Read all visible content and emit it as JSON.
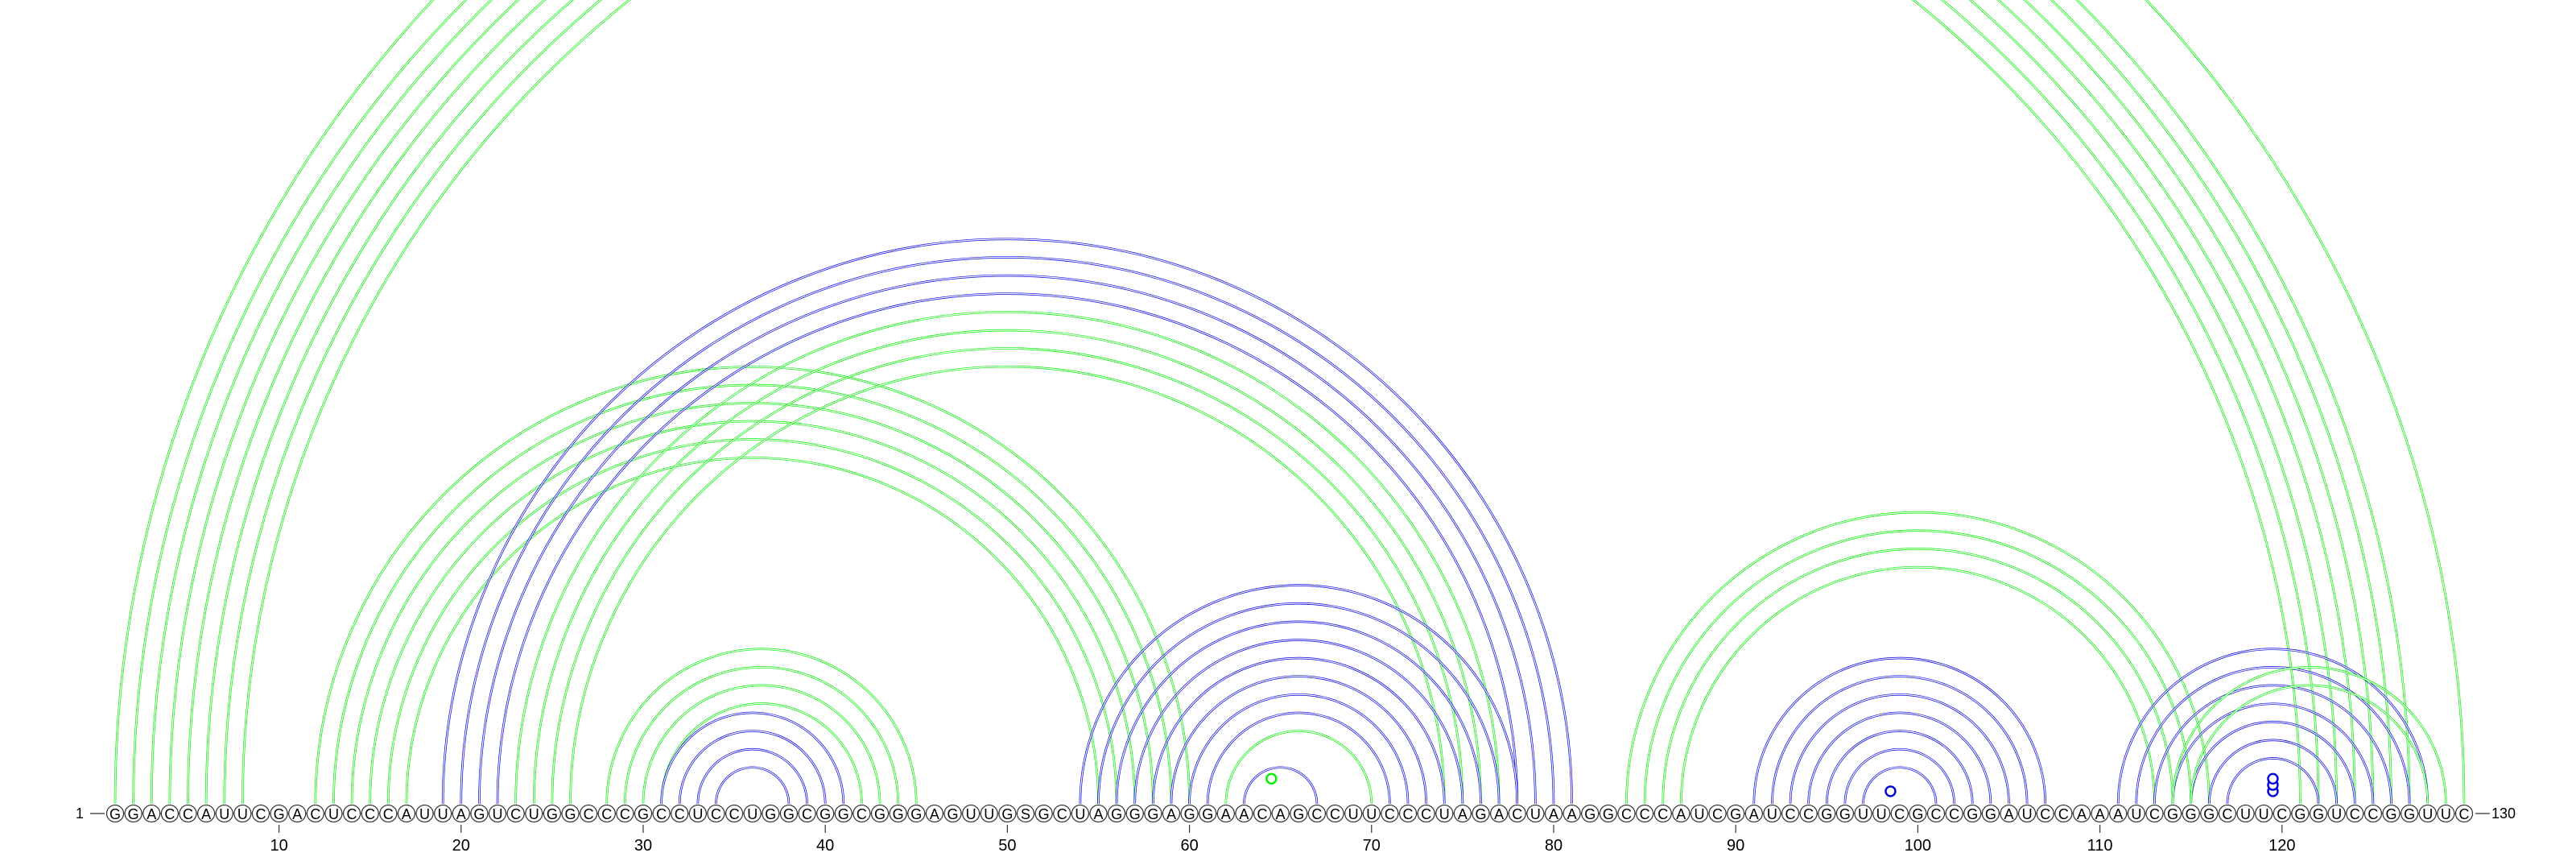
{
  "sequence": "GGACCAUUCGACUCCCAUUAGUCUGGCCCGCCUCCUGGCGGCGGGAGUUGSGCUAGGGAGGAACAGCCUUCCCUAGACUAAGGCCCAUCGAUCCGGUUCGCCGGAUCCAAAUCGGGCUUCGGUCCGGUUC",
  "start_label": "1",
  "end_label": "130",
  "tick_positions": [
    10,
    20,
    30,
    40,
    50,
    60,
    70,
    80,
    90,
    100,
    110,
    120
  ],
  "colors": {
    "green": "#00ee00",
    "blue": "#0000dd"
  },
  "arc_groups": [
    {
      "color": "green",
      "pairs": [
        [
          1,
          130
        ],
        [
          2,
          127
        ],
        [
          3,
          126
        ],
        [
          4,
          125
        ],
        [
          5,
          124
        ],
        [
          6,
          123
        ],
        [
          7,
          122
        ],
        [
          8,
          121
        ]
      ]
    },
    {
      "color": "green",
      "pairs": [
        [
          12,
          60
        ],
        [
          13,
          59
        ],
        [
          14,
          58
        ],
        [
          15,
          57
        ],
        [
          16,
          56
        ],
        [
          17,
          55
        ]
      ]
    },
    {
      "color": "green",
      "pairs": [
        [
          23,
          77
        ],
        [
          24,
          76
        ],
        [
          25,
          75
        ],
        [
          26,
          74
        ]
      ]
    },
    {
      "color": "blue",
      "pairs": [
        [
          19,
          81
        ],
        [
          20,
          80
        ],
        [
          21,
          79
        ],
        [
          22,
          78
        ]
      ]
    },
    {
      "color": "green",
      "pairs": [
        [
          28,
          45
        ],
        [
          29,
          44
        ],
        [
          30,
          43
        ],
        [
          31,
          42
        ]
      ]
    },
    {
      "color": "blue",
      "pairs": [
        [
          31,
          41
        ],
        [
          32,
          40
        ],
        [
          33,
          39
        ],
        [
          34,
          38
        ]
      ]
    },
    {
      "color": "blue",
      "pairs": [
        [
          54,
          78
        ],
        [
          55,
          77
        ],
        [
          56,
          76
        ],
        [
          57,
          75
        ],
        [
          58,
          74
        ],
        [
          59,
          73
        ],
        [
          60,
          72
        ],
        [
          61,
          71
        ]
      ]
    },
    {
      "color": "green",
      "pairs": [
        [
          62,
          70
        ]
      ]
    },
    {
      "color": "blue",
      "pairs": [
        [
          63,
          67
        ]
      ]
    },
    {
      "color": "green",
      "pairs": [
        [
          84,
          116
        ],
        [
          85,
          115
        ],
        [
          86,
          114
        ],
        [
          87,
          113
        ]
      ]
    },
    {
      "color": "blue",
      "pairs": [
        [
          91,
          107
        ],
        [
          92,
          106
        ],
        [
          93,
          105
        ],
        [
          94,
          104
        ],
        [
          95,
          103
        ],
        [
          96,
          102
        ],
        [
          97,
          101
        ]
      ]
    },
    {
      "color": "blue",
      "pairs": [
        [
          111,
          128
        ],
        [
          112,
          127
        ],
        [
          113,
          126
        ],
        [
          114,
          125
        ],
        [
          115,
          124
        ],
        [
          116,
          123
        ],
        [
          117,
          122
        ]
      ]
    },
    {
      "color": "green",
      "pairs": [
        [
          114,
          129
        ],
        [
          115,
          128
        ]
      ]
    }
  ],
  "ring_markers": [
    {
      "pos": 64.5,
      "level": 8,
      "color": "green"
    },
    {
      "pos": 98.5,
      "level": 4,
      "color": "blue"
    },
    {
      "pos": 119.5,
      "level": 4,
      "color": "blue"
    },
    {
      "pos": 119.5,
      "level": 6,
      "color": "blue"
    },
    {
      "pos": 119.5,
      "level": 8,
      "color": "blue"
    }
  ]
}
